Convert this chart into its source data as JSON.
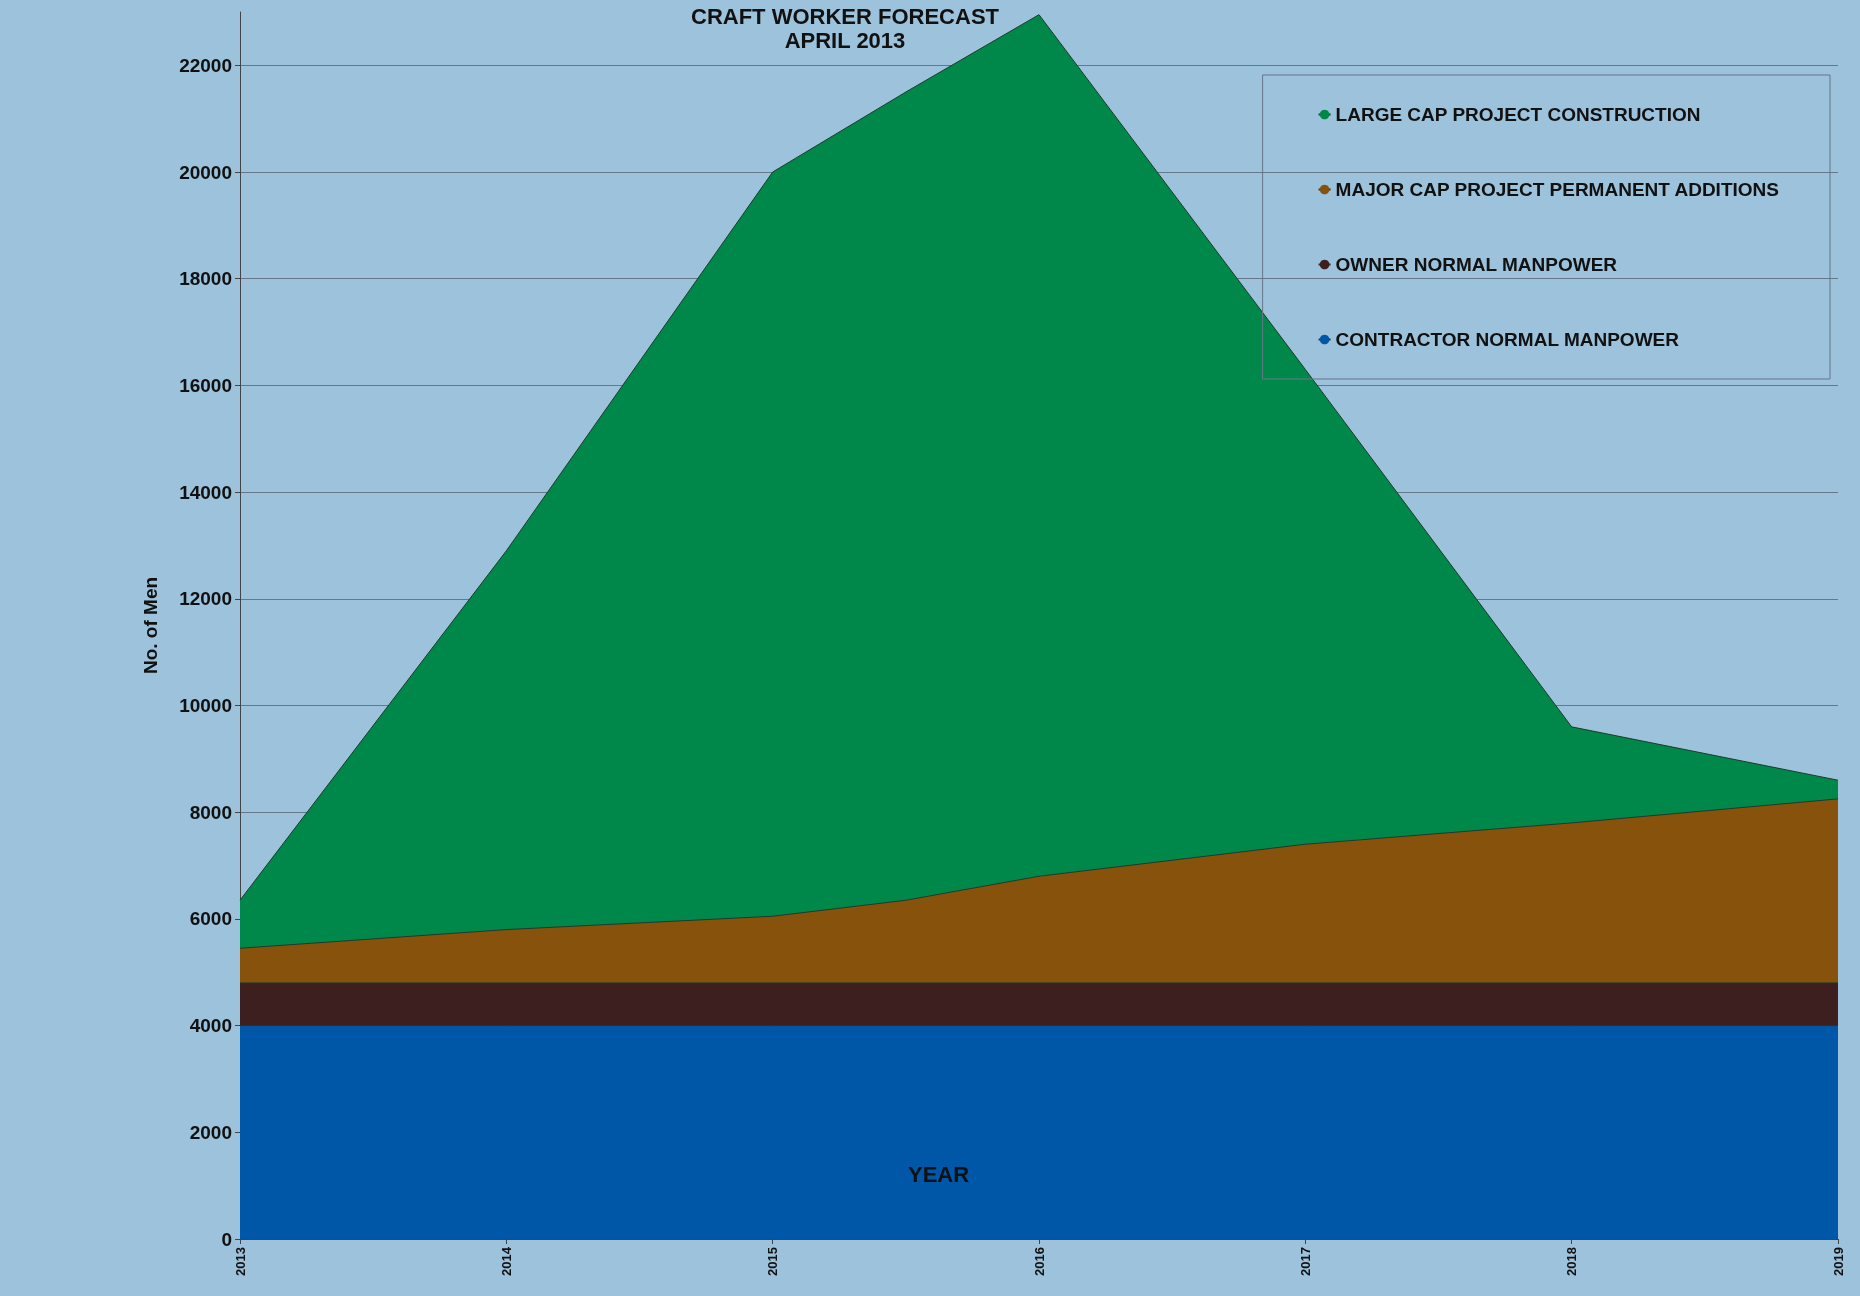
{
  "chart_data": {
    "type": "area",
    "title": "CRAFT WORKER FORECAST",
    "subtitle": "APRIL 2013",
    "xlabel": "YEAR",
    "ylabel": "No. of Men",
    "stacked": true,
    "xlim": [
      2013,
      2019
    ],
    "xticks": [
      2013,
      2014,
      2015,
      2016,
      2017,
      2018,
      2019
    ],
    "ylim": [
      0,
      23000
    ],
    "yticks": [
      0,
      2000,
      4000,
      6000,
      8000,
      10000,
      12000,
      14000,
      16000,
      18000,
      20000,
      22000
    ],
    "grid": "y",
    "legend": "top right",
    "x": [
      2013,
      2014,
      2015,
      2015.5,
      2016,
      2017,
      2018,
      2019
    ],
    "series": [
      {
        "name": "CONTRACTOR NORMAL MANPOWER",
        "color": "#0057a8",
        "values": [
          4000,
          4000,
          4000,
          4000,
          4000,
          4000,
          4000,
          4000
        ]
      },
      {
        "name": "OWNER NORMAL MANPOWER",
        "color": "#3d1f1f",
        "values": [
          800,
          800,
          800,
          800,
          800,
          800,
          800,
          800
        ]
      },
      {
        "name": "MAJOR CAP PROJECT PERMANENT ADDITIONS",
        "color": "#87520c",
        "values": [
          650,
          1000,
          1250,
          1550,
          2000,
          2600,
          3000,
          3450
        ]
      },
      {
        "name": "LARGE CAP PROJECT CONSTRUCTION",
        "color": "#00884a",
        "values": [
          900,
          7100,
          13950,
          15150,
          16150,
          8900,
          1800,
          350
        ]
      }
    ]
  }
}
